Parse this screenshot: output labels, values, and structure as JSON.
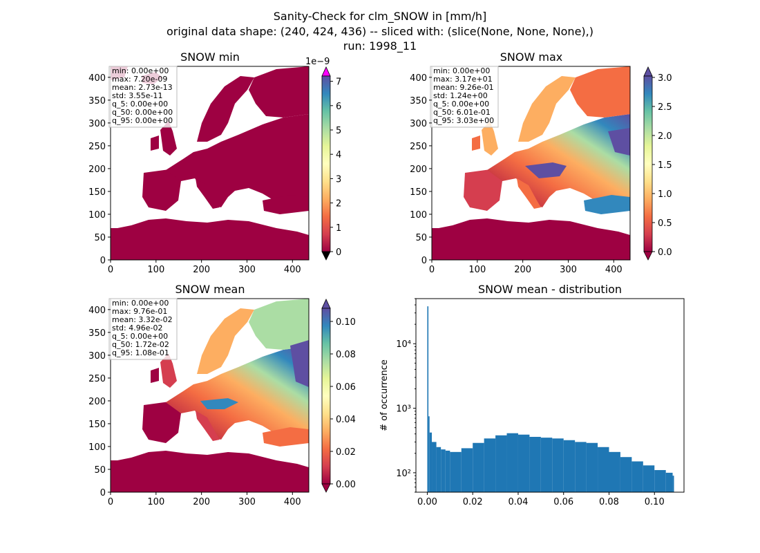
{
  "figure": {
    "title_lines": [
      "Sanity-Check for clm_SNOW in [mm/h]",
      "original data shape: (240, 424, 436) -- sliced with: (slice(None, None, None),)",
      "run: 1998_11"
    ]
  },
  "colors": {
    "land_low": "#9e0142",
    "ocean": "#ffffff",
    "hist_bar": "#1f77b4",
    "cbar_over_min": "#ff00ff",
    "cbar_under_min": "#000000",
    "cbar_over": "#5e4fa2",
    "cbar_under": "#9e0142"
  },
  "map_axes": {
    "xticks": [
      "0",
      "100",
      "200",
      "300",
      "400"
    ],
    "yticks": [
      "0",
      "50",
      "100",
      "150",
      "200",
      "250",
      "300",
      "350",
      "400"
    ]
  },
  "panels": [
    {
      "title": "SNOW min",
      "stats": [
        "min: 0.00e+00",
        "max: 7.20e-09",
        "mean: 2.73e-13",
        "std: 3.55e-11",
        "q_5: 0.00e+00",
        "q_50: 0.00e+00",
        "q_95: 0.00e+00"
      ],
      "cbar": {
        "ticks": [
          "0",
          "1",
          "2",
          "3",
          "4",
          "5",
          "6",
          "7"
        ],
        "offset": "1e−9",
        "extend": "both-min"
      }
    },
    {
      "title": "SNOW max",
      "stats": [
        "min: 0.00e+00",
        "max: 3.17e+01",
        "mean: 9.26e-01",
        "std: 1.24e+00",
        "q_5: 0.00e+00",
        "q_50: 6.01e-01",
        "q_95: 3.03e+00"
      ],
      "cbar": {
        "ticks": [
          "0.0",
          "0.5",
          "1.0",
          "1.5",
          "2.0",
          "2.5",
          "3.0"
        ],
        "offset": "",
        "extend": "both"
      }
    },
    {
      "title": "SNOW mean",
      "stats": [
        "min: 0.00e+00",
        "max: 9.76e-01",
        "mean: 3.32e-02",
        "std: 4.96e-02",
        "q_5: 0.00e+00",
        "q_50: 1.72e-02",
        "q_95: 1.08e-01"
      ],
      "cbar": {
        "ticks": [
          "0.00",
          "0.02",
          "0.04",
          "0.06",
          "0.08",
          "0.10"
        ],
        "offset": "",
        "extend": "both"
      }
    }
  ],
  "chart_data": [
    {
      "type": "heatmap",
      "title": "SNOW min",
      "xlim": [
        0,
        436
      ],
      "ylim": [
        0,
        424
      ],
      "colorbar_range": [
        0,
        7.2e-09
      ],
      "colormap": "Spectral"
    },
    {
      "type": "heatmap",
      "title": "SNOW max",
      "xlim": [
        0,
        436
      ],
      "ylim": [
        0,
        424
      ],
      "colorbar_range": [
        0,
        3.03
      ],
      "colormap": "Spectral"
    },
    {
      "type": "heatmap",
      "title": "SNOW mean",
      "xlim": [
        0,
        436
      ],
      "ylim": [
        0,
        424
      ],
      "colorbar_range": [
        0,
        0.108
      ],
      "colormap": "Spectral"
    },
    {
      "type": "bar",
      "title": "SNOW mean - distribution",
      "ylabel": "# of occurrence",
      "xlabel": "",
      "yscale": "log",
      "xlim": [
        -0.005,
        0.113
      ],
      "ylim": [
        50,
        50000
      ],
      "xticks": [
        "0.00",
        "0.02",
        "0.04",
        "0.06",
        "0.08",
        "0.10"
      ],
      "yticks": [
        "10²",
        "10³",
        "10⁴"
      ],
      "x": [
        0.0,
        0.0005,
        0.001,
        0.002,
        0.004,
        0.006,
        0.008,
        0.01,
        0.015,
        0.02,
        0.025,
        0.03,
        0.035,
        0.04,
        0.045,
        0.05,
        0.055,
        0.06,
        0.065,
        0.07,
        0.075,
        0.08,
        0.085,
        0.09,
        0.095,
        0.1,
        0.105,
        0.108
      ],
      "values": [
        38000,
        750,
        420,
        300,
        250,
        230,
        220,
        210,
        240,
        290,
        340,
        380,
        410,
        390,
        360,
        350,
        340,
        320,
        300,
        290,
        250,
        210,
        175,
        150,
        130,
        110,
        100,
        90
      ]
    }
  ]
}
